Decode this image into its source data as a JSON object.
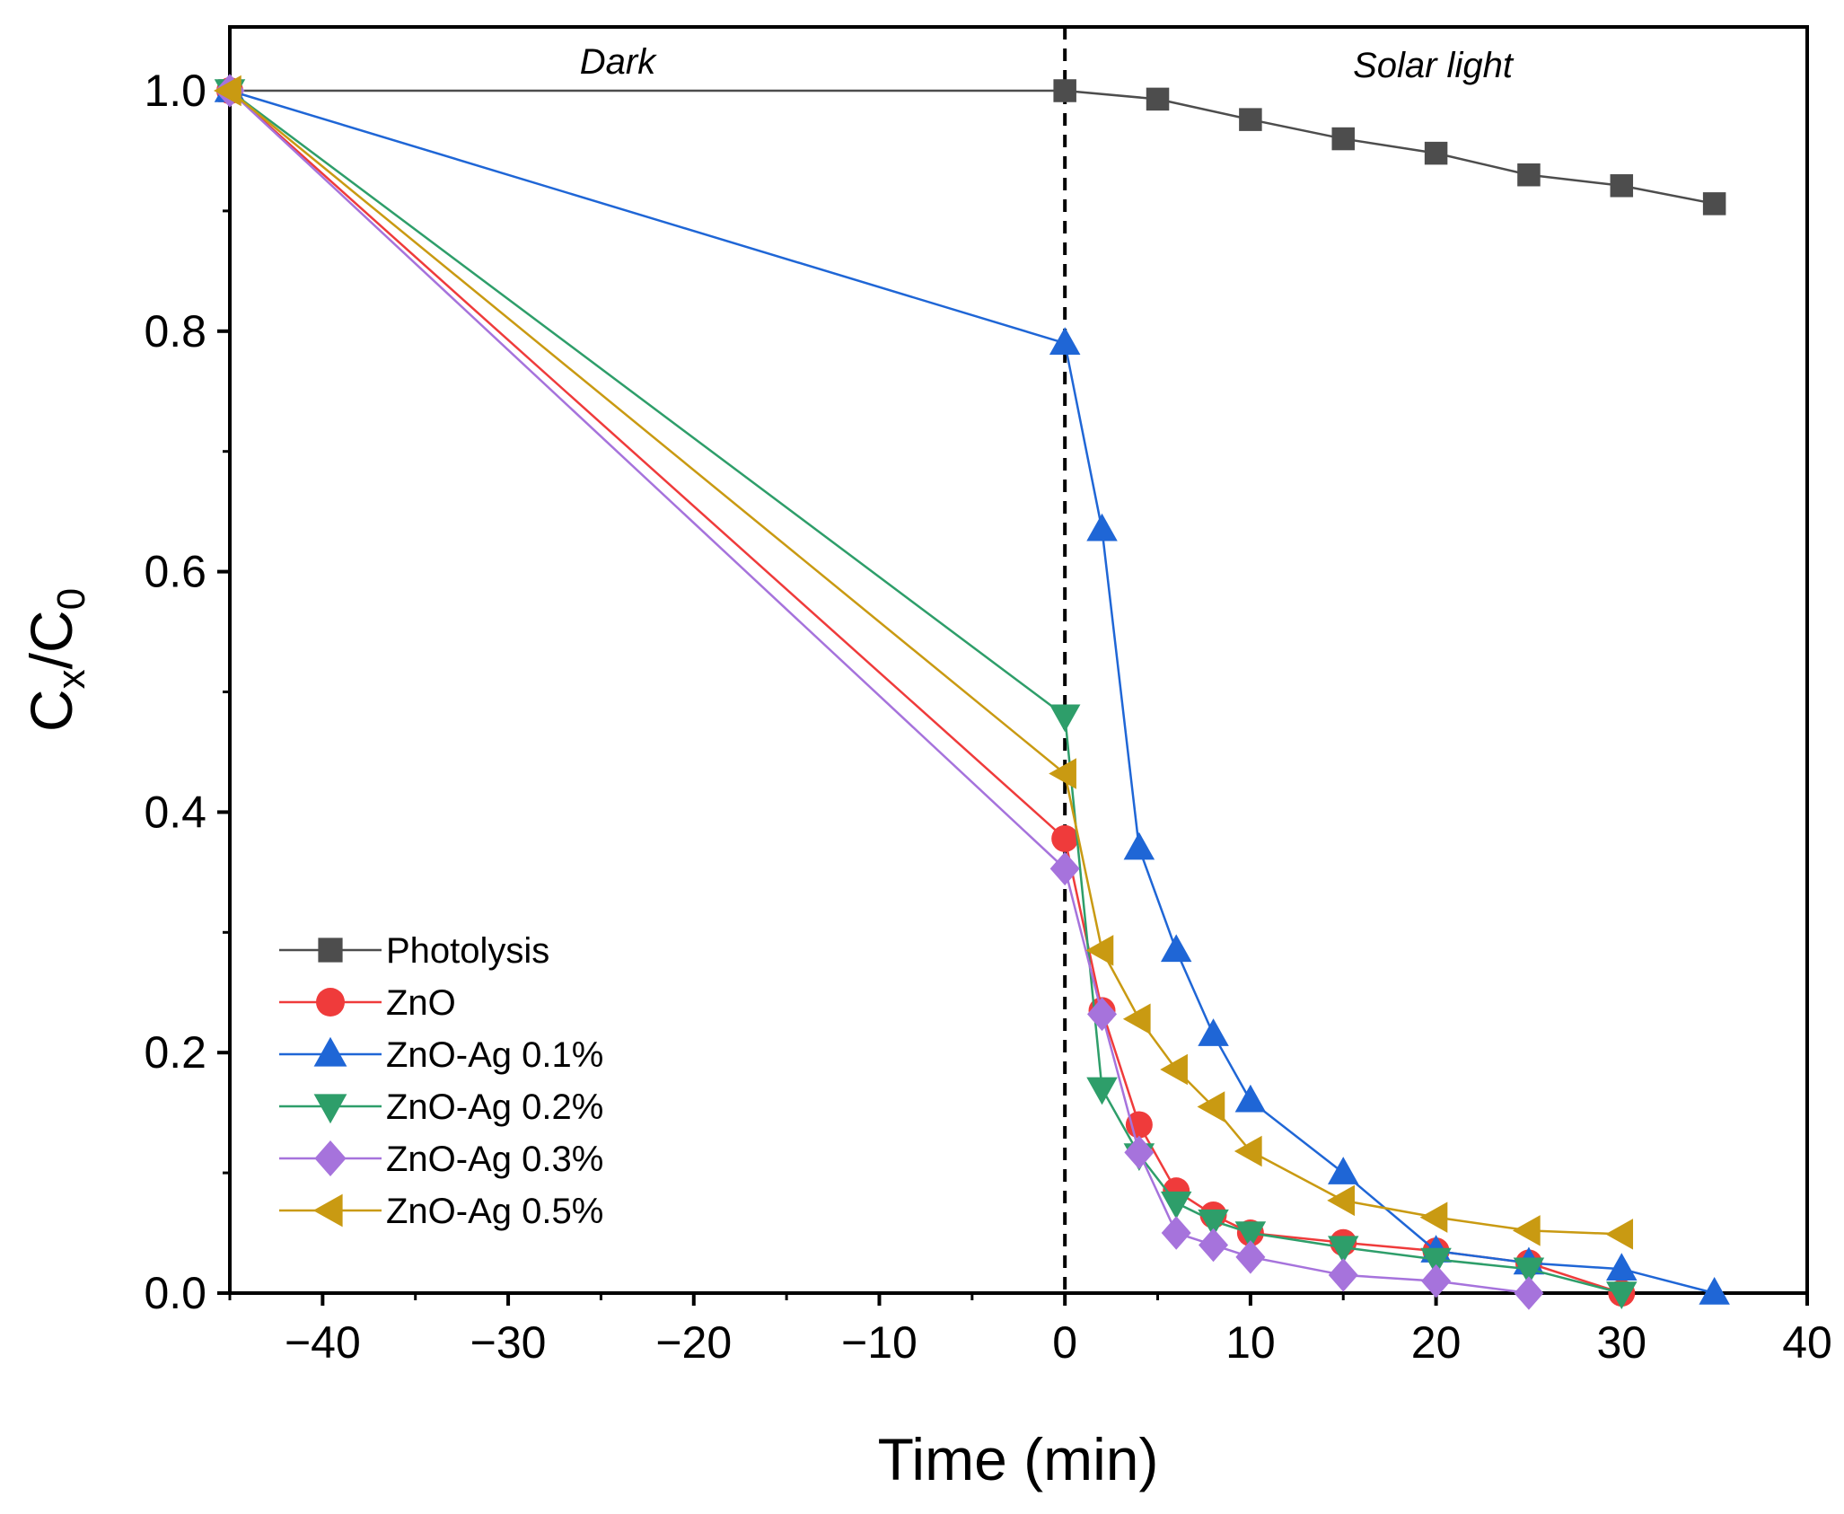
{
  "chart_data": {
    "type": "line",
    "title": "",
    "xlabel": "Time (min)",
    "ylabel_main": "C",
    "ylabel_sub1": "x",
    "ylabel_sep": "/C",
    "ylabel_sub2": "0",
    "xlim": [
      -45,
      40
    ],
    "ylim": [
      0,
      1.05
    ],
    "x_ticks": [
      -40,
      -30,
      -20,
      -10,
      0,
      10,
      20,
      30,
      40
    ],
    "x_tick_labels": [
      "−40",
      "−30",
      "−20",
      "−10",
      "0",
      "10",
      "20",
      "30",
      "40"
    ],
    "y_ticks": [
      0,
      0.2,
      0.4,
      0.6,
      0.8,
      1.0
    ],
    "y_tick_labels": [
      "0.0",
      "0.2",
      "0.4",
      "0.6",
      "0.8",
      "1.0"
    ],
    "vline_x": 0,
    "regions": [
      {
        "label": "Dark",
        "x": -24
      },
      {
        "label": "Solar light",
        "x": 20.5
      }
    ],
    "legend_position": "bottom-left",
    "series": [
      {
        "name": "Photolysis",
        "marker": "square",
        "color": "#4d4d4d",
        "x": [
          -45,
          0,
          5,
          10,
          15,
          20,
          25,
          30,
          35
        ],
        "y": [
          1.0,
          1.0,
          0.993,
          0.976,
          0.96,
          0.948,
          0.93,
          0.921,
          0.906
        ]
      },
      {
        "name": "ZnO",
        "marker": "circle",
        "color": "#ef3b3b",
        "x": [
          -45,
          0,
          2,
          4,
          6,
          8,
          10,
          15,
          20,
          25,
          30
        ],
        "y": [
          1.0,
          0.378,
          0.235,
          0.14,
          0.085,
          0.065,
          0.05,
          0.042,
          0.035,
          0.025,
          0.0
        ]
      },
      {
        "name": "ZnO-Ag 0.1%",
        "marker": "triangle-up",
        "color": "#1f66d6",
        "x": [
          -45,
          0,
          2,
          4,
          6,
          8,
          10,
          15,
          20,
          25,
          30,
          35
        ],
        "y": [
          1.0,
          0.79,
          0.635,
          0.37,
          0.285,
          0.215,
          0.16,
          0.1,
          0.035,
          0.025,
          0.02,
          0.0
        ]
      },
      {
        "name": "ZnO-Ag 0.2%",
        "marker": "triangle-down",
        "color": "#2e9e6a",
        "x": [
          -45,
          0,
          2,
          4,
          6,
          8,
          10,
          15,
          20,
          25,
          30
        ],
        "y": [
          1.0,
          0.48,
          0.17,
          0.115,
          0.075,
          0.06,
          0.05,
          0.038,
          0.028,
          0.02,
          0.0
        ]
      },
      {
        "name": "ZnO-Ag 0.3%",
        "marker": "diamond",
        "color": "#a673dc",
        "x": [
          -45,
          0,
          2,
          4,
          6,
          8,
          10,
          15,
          20,
          25
        ],
        "y": [
          1.0,
          0.353,
          0.232,
          0.117,
          0.05,
          0.04,
          0.03,
          0.015,
          0.01,
          0.0
        ]
      },
      {
        "name": "ZnO-Ag 0.5%",
        "marker": "triangle-left",
        "color": "#c99a12",
        "x": [
          -45,
          0,
          2,
          4,
          6,
          8,
          10,
          15,
          20,
          25,
          30
        ],
        "y": [
          1.0,
          0.432,
          0.285,
          0.228,
          0.186,
          0.155,
          0.118,
          0.077,
          0.063,
          0.052,
          0.049
        ]
      }
    ]
  }
}
